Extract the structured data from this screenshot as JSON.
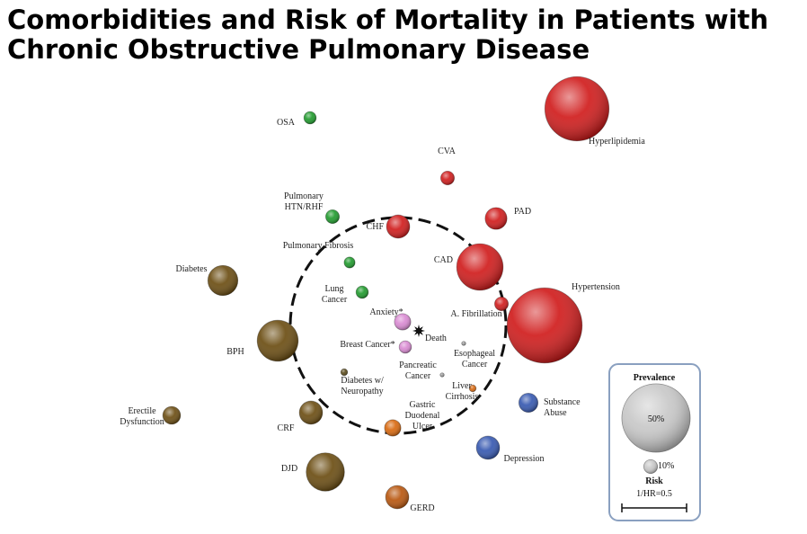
{
  "chart_data": {
    "type": "comorbidome",
    "title": [
      "Comorbidities and Risk of Mortality in Patients with",
      "Chronic Obstructive Pulmonary Disease"
    ],
    "center_label": "Death",
    "series": [
      {
        "label": [
          "Hyperlipidemia"
        ],
        "color": "#d01c1c",
        "value": 47
      },
      {
        "label": [
          "Hypertension"
        ],
        "color": "#d01c1c",
        "value": 55
      },
      {
        "label": [
          "CAD"
        ],
        "color": "#d01c1c",
        "value": 34
      },
      {
        "label": [
          "CHF"
        ],
        "color": "#d01c1c",
        "value": 17
      },
      {
        "label": [
          "PAD"
        ],
        "color": "#d01c1c",
        "value": 16
      },
      {
        "label": [
          "CVA"
        ],
        "color": "#d01c1c",
        "value": 10
      },
      {
        "label": [
          "A. Fibrillation"
        ],
        "color": "#d01c1c",
        "value": 10
      },
      {
        "label": [
          "OSA"
        ],
        "color": "#1f9a2c",
        "value": 9
      },
      {
        "label": [
          "Pulmonary",
          "HTN/RHF"
        ],
        "color": "#1f9a2c",
        "value": 10
      },
      {
        "label": [
          "Pulmonary Fibrosis"
        ],
        "color": "#1f9a2c",
        "value": 8
      },
      {
        "label": [
          "Lung",
          "Cancer"
        ],
        "color": "#1f9a2c",
        "value": 9
      },
      {
        "label": [
          "Anxiety*"
        ],
        "color": "#d98ad2",
        "value": 12
      },
      {
        "label": [
          "Breast Cancer*"
        ],
        "color": "#d98ad2",
        "value": 9
      },
      {
        "label": [
          "Esophageal",
          "Cancer"
        ],
        "color": "#9a9a9a",
        "value": 3
      },
      {
        "label": [
          "Pancreatic",
          "Cancer"
        ],
        "color": "#9a9a9a",
        "value": 3
      },
      {
        "label": [
          "Diabetes w/",
          "Neuropathy"
        ],
        "color": "#5a4a1a",
        "value": 5
      },
      {
        "label": [
          "Liver",
          "Cirrhosis"
        ],
        "color": "#d8680e",
        "value": 5
      },
      {
        "label": [
          "Gastric",
          "Duodenal",
          "Ulcer"
        ],
        "color": "#d8680e",
        "value": 12
      },
      {
        "label": [
          "Diabetes"
        ],
        "color": "#6b4d12",
        "value": 22
      },
      {
        "label": [
          "BPH"
        ],
        "color": "#6b4d12",
        "value": 30
      },
      {
        "label": [
          "Erectile",
          "Dysfunction"
        ],
        "color": "#6b4d12",
        "value": 13
      },
      {
        "label": [
          "CRF"
        ],
        "color": "#6b4d12",
        "value": 17
      },
      {
        "label": [
          "DJD"
        ],
        "color": "#6b4d12",
        "value": 28
      },
      {
        "label": [
          "GERD"
        ],
        "color": "#b8560e",
        "value": 17
      },
      {
        "label": [
          "Depression"
        ],
        "color": "#3658b0",
        "value": 17
      },
      {
        "label": [
          "Substance",
          "Abuse"
        ],
        "color": "#3658b0",
        "value": 14
      }
    ],
    "legend": {
      "title": "Prevalence",
      "sizes": [
        {
          "value": 50,
          "label": "50%"
        },
        {
          "value": 10,
          "label": "10%"
        }
      ],
      "risk_title": "Risk",
      "risk_label": "1/HR=0.5"
    }
  }
}
